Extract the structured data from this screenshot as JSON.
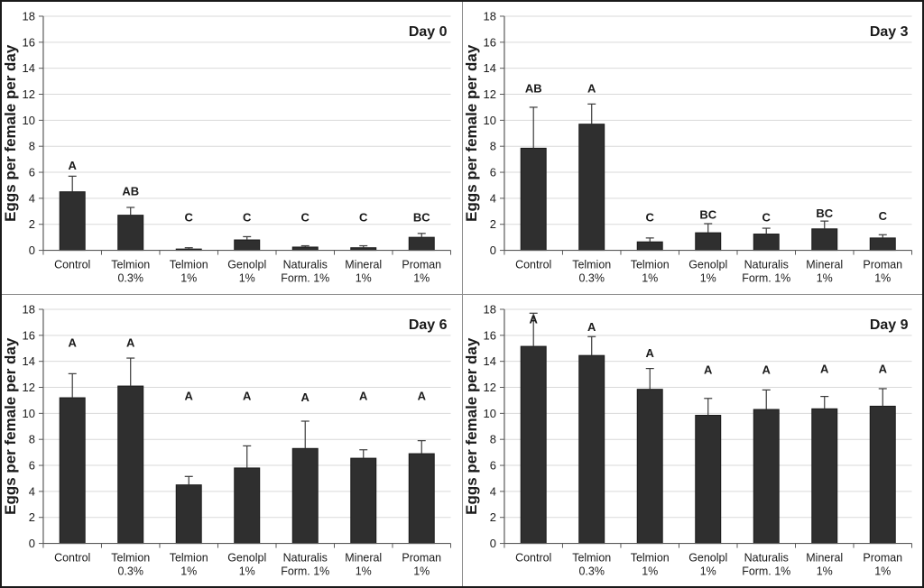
{
  "figure": {
    "ylabel": "Eggs per female per day",
    "colors": {
      "bar_fill": "#2f2f2f",
      "bar_stroke": "#1a1a1a",
      "gridline": "#d9d9d9",
      "axis": "#595959",
      "error_bar": "#3a3a3a",
      "text": "#1a1a1a",
      "divider": "#8c8c8c"
    }
  },
  "chart_data": [
    {
      "type": "bar",
      "title": "Day 0",
      "ylabel": "Eggs per female per day",
      "ylim": [
        0,
        18
      ],
      "ytick_step": 2,
      "grid": true,
      "legend": "none",
      "categories": [
        [
          "Control",
          ""
        ],
        [
          "Telmion",
          "0.3%"
        ],
        [
          "Telmion",
          "1%"
        ],
        [
          "Genolpl",
          "1%"
        ],
        [
          "Naturalis",
          "Form. 1%"
        ],
        [
          "Mineral",
          "1%"
        ],
        [
          "Proman",
          "1%"
        ]
      ],
      "values": [
        4.5,
        2.7,
        0.1,
        0.8,
        0.25,
        0.2,
        1.0
      ],
      "errors_up": [
        1.2,
        0.6,
        0.1,
        0.25,
        0.1,
        0.15,
        0.3
      ],
      "letters": [
        "A",
        "AB",
        "C",
        "C",
        "C",
        "C",
        "BC"
      ],
      "letter_y": [
        6.5,
        4.5,
        2.5,
        2.5,
        2.5,
        2.5,
        2.5
      ]
    },
    {
      "type": "bar",
      "title": "Day 3",
      "ylabel": "Eggs per female per day",
      "ylim": [
        0,
        18
      ],
      "ytick_step": 2,
      "grid": true,
      "legend": "none",
      "categories": [
        [
          "Control",
          ""
        ],
        [
          "Telmion",
          "0.3%"
        ],
        [
          "Telmion",
          "1%"
        ],
        [
          "Genolpl",
          "1%"
        ],
        [
          "Naturalis",
          "Form. 1%"
        ],
        [
          "Mineral",
          "1%"
        ],
        [
          "Proman",
          "1%"
        ]
      ],
      "values": [
        7.85,
        9.7,
        0.65,
        1.35,
        1.25,
        1.65,
        0.95
      ],
      "errors_up": [
        3.15,
        1.55,
        0.3,
        0.7,
        0.45,
        0.6,
        0.25
      ],
      "letters": [
        "AB",
        "A",
        "C",
        "BC",
        "C",
        "BC",
        "C"
      ],
      "letter_y": [
        12.4,
        12.4,
        2.5,
        2.7,
        2.5,
        2.8,
        2.6
      ]
    },
    {
      "type": "bar",
      "title": "Day 6",
      "ylabel": "Eggs per female per day",
      "ylim": [
        0,
        18
      ],
      "ytick_step": 2,
      "grid": true,
      "legend": "none",
      "categories": [
        [
          "Control",
          ""
        ],
        [
          "Telmion",
          "0.3%"
        ],
        [
          "Telmion",
          "1%"
        ],
        [
          "Genolpl",
          "1%"
        ],
        [
          "Naturalis",
          "Form. 1%"
        ],
        [
          "Mineral",
          "1%"
        ],
        [
          "Proman",
          "1%"
        ]
      ],
      "values": [
        11.2,
        12.1,
        4.5,
        5.8,
        7.3,
        6.55,
        6.9
      ],
      "errors_up": [
        1.85,
        2.15,
        0.65,
        1.7,
        2.1,
        0.65,
        1.0
      ],
      "letters": [
        "A",
        "A",
        "A",
        "A",
        "A",
        "A",
        "A"
      ],
      "letter_y": [
        15.4,
        15.4,
        11.3,
        11.3,
        11.2,
        11.3,
        11.3
      ]
    },
    {
      "type": "bar",
      "title": "Day 9",
      "ylabel": "Eggs per female per day",
      "ylim": [
        0,
        18
      ],
      "ytick_step": 2,
      "grid": true,
      "legend": "none",
      "categories": [
        [
          "Control",
          ""
        ],
        [
          "Telmion",
          "0.3%"
        ],
        [
          "Telmion",
          "1%"
        ],
        [
          "Genolpl",
          "1%"
        ],
        [
          "Naturalis",
          "Form. 1%"
        ],
        [
          "Mineral",
          "1%"
        ],
        [
          "Proman",
          "1%"
        ]
      ],
      "values": [
        15.15,
        14.45,
        11.85,
        9.85,
        10.3,
        10.35,
        10.55
      ],
      "errors_up": [
        2.55,
        1.45,
        1.6,
        1.3,
        1.5,
        0.95,
        1.35
      ],
      "letters": [
        "A",
        "A",
        "A",
        "A",
        "A",
        "A",
        "A"
      ],
      "letter_y": [
        17.2,
        16.6,
        14.6,
        13.3,
        13.3,
        13.4,
        13.4
      ]
    }
  ]
}
